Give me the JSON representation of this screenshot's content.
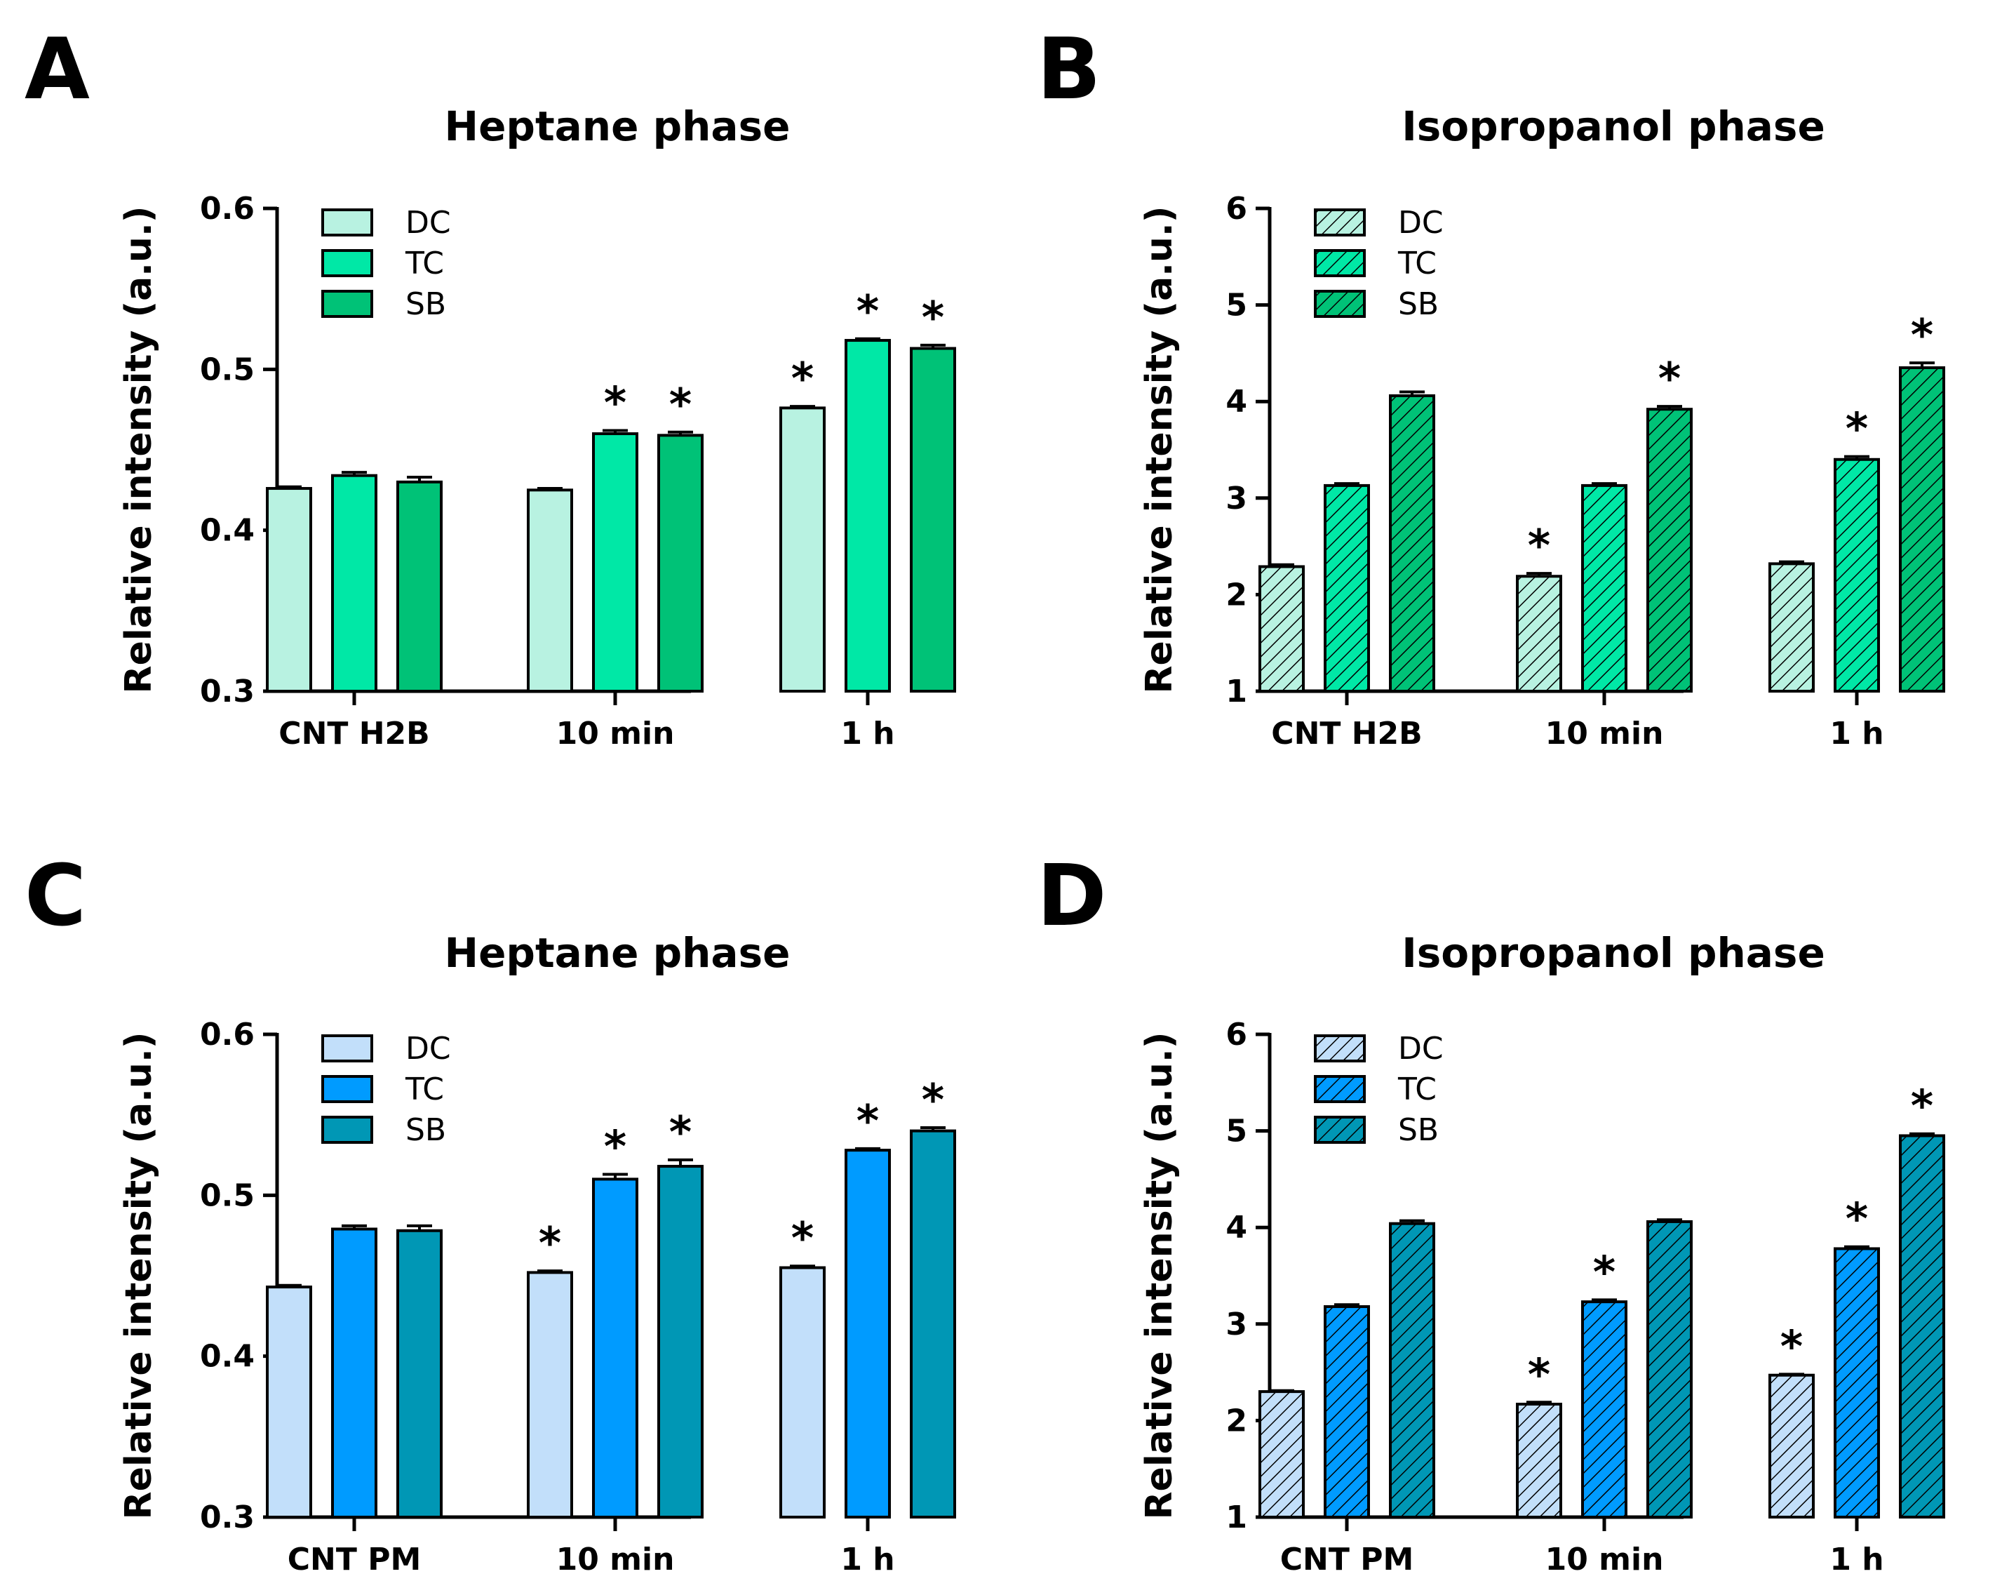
{
  "panels": [
    {
      "letter": "A",
      "chart_data": {
        "type": "bar",
        "title": "Heptane phase",
        "ylabel": "Relative intensity (a.u.)",
        "xlabel": "",
        "ylim": [
          0.3,
          0.6
        ],
        "yticks": [
          "0.3",
          "0.4",
          "0.5",
          "0.6"
        ],
        "categories": [
          "CNT H2B",
          "10 min",
          "1 h"
        ],
        "legend": "top-left",
        "hatched": false,
        "series": [
          {
            "name": "DC",
            "color": "#b8f2e1",
            "values": [
              0.426,
              0.425,
              0.476
            ],
            "errors": [
              0.001,
              0.001,
              0.001
            ],
            "significant": [
              false,
              false,
              true
            ]
          },
          {
            "name": "TC",
            "color": "#00e8a6",
            "values": [
              0.434,
              0.46,
              0.518
            ],
            "errors": [
              0.002,
              0.002,
              0.001
            ],
            "significant": [
              false,
              true,
              true
            ]
          },
          {
            "name": "SB",
            "color": "#00c277",
            "values": [
              0.43,
              0.459,
              0.513
            ],
            "errors": [
              0.003,
              0.002,
              0.002
            ],
            "significant": [
              false,
              true,
              true
            ]
          }
        ],
        "star_label": "*"
      }
    },
    {
      "letter": "B",
      "chart_data": {
        "type": "bar",
        "title": "Isopropanol phase",
        "ylabel": "Relative intensity (a.u.)",
        "xlabel": "",
        "ylim": [
          1,
          6
        ],
        "yticks": [
          "1",
          "2",
          "3",
          "4",
          "5",
          "6"
        ],
        "categories": [
          "CNT H2B",
          "10 min",
          "1 h"
        ],
        "legend": "top-left",
        "hatched": true,
        "series": [
          {
            "name": "DC",
            "color": "#b8f2e1",
            "values": [
              2.29,
              2.19,
              2.32
            ],
            "errors": [
              0.02,
              0.03,
              0.02
            ],
            "significant": [
              false,
              true,
              false
            ]
          },
          {
            "name": "TC",
            "color": "#00e8a6",
            "values": [
              3.13,
              3.13,
              3.4
            ],
            "errors": [
              0.02,
              0.02,
              0.03
            ],
            "significant": [
              false,
              false,
              true
            ]
          },
          {
            "name": "SB",
            "color": "#00c277",
            "values": [
              4.06,
              3.92,
              4.35
            ],
            "errors": [
              0.04,
              0.03,
              0.05
            ],
            "significant": [
              false,
              true,
              true
            ]
          }
        ],
        "star_label": "*"
      }
    },
    {
      "letter": "C",
      "chart_data": {
        "type": "bar",
        "title": "Heptane phase",
        "ylabel": "Relative intensity (a.u.)",
        "xlabel": "",
        "ylim": [
          0.3,
          0.6
        ],
        "yticks": [
          "0.3",
          "0.4",
          "0.5",
          "0.6"
        ],
        "categories": [
          "CNT PM",
          "10 min",
          "1 h"
        ],
        "legend": "top-left",
        "hatched": false,
        "series": [
          {
            "name": "DC",
            "color": "#c2dffa",
            "values": [
              0.443,
              0.452,
              0.455
            ],
            "errors": [
              0.001,
              0.001,
              0.001
            ],
            "significant": [
              false,
              true,
              true
            ]
          },
          {
            "name": "TC",
            "color": "#009bff",
            "values": [
              0.479,
              0.51,
              0.528
            ],
            "errors": [
              0.002,
              0.003,
              0.001
            ],
            "significant": [
              false,
              true,
              true
            ]
          },
          {
            "name": "SB",
            "color": "#0097b5",
            "values": [
              0.478,
              0.518,
              0.54
            ],
            "errors": [
              0.003,
              0.004,
              0.002
            ],
            "significant": [
              false,
              true,
              true
            ]
          }
        ],
        "star_label": "*"
      }
    },
    {
      "letter": "D",
      "chart_data": {
        "type": "bar",
        "title": "Isopropanol phase",
        "ylabel": "Relative intensity (a.u.)",
        "xlabel": "",
        "ylim": [
          1,
          6
        ],
        "yticks": [
          "1",
          "2",
          "3",
          "4",
          "5",
          "6"
        ],
        "categories": [
          "CNT PM",
          "10 min",
          "1 h"
        ],
        "legend": "top-left",
        "hatched": true,
        "series": [
          {
            "name": "DC",
            "color": "#c2dffa",
            "values": [
              2.3,
              2.17,
              2.47
            ],
            "errors": [
              0.01,
              0.02,
              0.01
            ],
            "significant": [
              false,
              true,
              true
            ]
          },
          {
            "name": "TC",
            "color": "#009bff",
            "values": [
              3.18,
              3.23,
              3.78
            ],
            "errors": [
              0.02,
              0.02,
              0.02
            ],
            "significant": [
              false,
              true,
              true
            ]
          },
          {
            "name": "SB",
            "color": "#0097b5",
            "values": [
              4.04,
              4.06,
              4.95
            ],
            "errors": [
              0.03,
              0.02,
              0.02
            ],
            "significant": [
              false,
              false,
              true
            ]
          }
        ],
        "star_label": "*"
      }
    }
  ]
}
